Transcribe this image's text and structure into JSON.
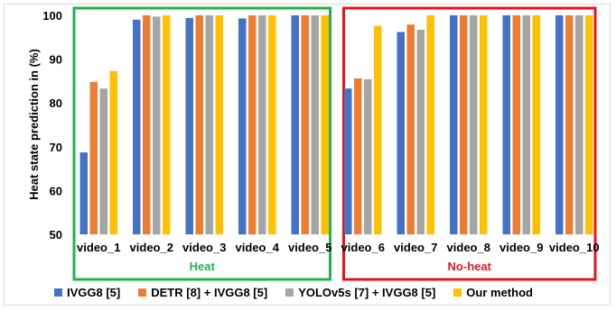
{
  "chart_data": {
    "type": "bar",
    "ylabel": "Heat state prediction in (%)",
    "ylim": [
      50,
      100
    ],
    "yticks": [
      50,
      60,
      70,
      80,
      90,
      100
    ],
    "categories": [
      "video_1",
      "video_2",
      "video_3",
      "video_4",
      "video_5",
      "video_6",
      "video_7",
      "video_8",
      "video_9",
      "video_10"
    ],
    "series": [
      {
        "name": "IVGG8 [5]",
        "color": "#4472c4",
        "values": [
          68.7,
          99.0,
          99.4,
          99.3,
          100,
          83.3,
          96.2,
          100,
          100,
          100
        ]
      },
      {
        "name": "DETR [8] + IVGG8 [5]",
        "color": "#ed7d31",
        "values": [
          84.8,
          100,
          100,
          100,
          100,
          85.6,
          97.9,
          100,
          100,
          100
        ]
      },
      {
        "name": "YOLOv5s [7] + IVGG8 [5]",
        "color": "#a5a5a5",
        "values": [
          83.3,
          99.7,
          100,
          100,
          100,
          85.4,
          96.7,
          100,
          100,
          100
        ]
      },
      {
        "name": "Our method",
        "color": "#ffc000",
        "values": [
          87.3,
          100,
          100,
          100,
          100,
          97.6,
          100,
          100,
          100,
          100
        ]
      }
    ],
    "groups": [
      {
        "label": "Heat",
        "color": "#22b14c",
        "categories": [
          "video_1",
          "video_2",
          "video_3",
          "video_4",
          "video_5"
        ]
      },
      {
        "label": "No-heat",
        "color": "#e8141b",
        "categories": [
          "video_6",
          "video_7",
          "video_8",
          "video_9",
          "video_10"
        ]
      }
    ]
  }
}
